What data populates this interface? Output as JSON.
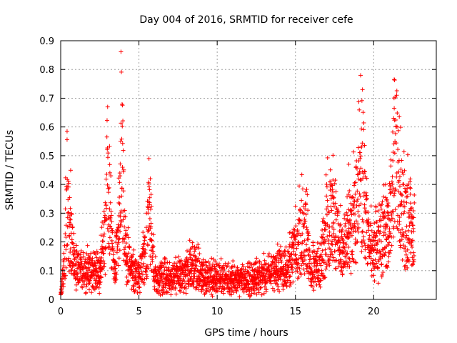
{
  "chart_data": {
    "type": "scatter",
    "title": "Day 004 of 2016, SRMTID for receiver cefe",
    "xlabel": "GPS time / hours",
    "ylabel": "SRMTID / TECUs",
    "xlim": [
      0,
      24
    ],
    "ylim": [
      0,
      0.9
    ],
    "xticks": [
      0,
      5,
      10,
      15,
      20
    ],
    "yticks": [
      0,
      0.1,
      0.2,
      0.3,
      0.4,
      0.5,
      0.6,
      0.7,
      0.8,
      0.9
    ],
    "ytick_labels": [
      "0",
      "0.1",
      "0.2",
      "0.3",
      "0.4",
      "0.5",
      "0.6",
      "0.7",
      "0.8",
      "0.9"
    ],
    "grid": true,
    "marker": "+",
    "color": "#ff0000",
    "series": [
      {
        "name": "SRMTID",
        "envelope": {
          "x": [
            0.0,
            0.2,
            0.4,
            0.6,
            0.8,
            1.0,
            1.5,
            2.0,
            2.5,
            2.9,
            3.0,
            3.2,
            3.5,
            3.8,
            3.9,
            4.0,
            4.2,
            4.5,
            5.0,
            5.5,
            5.6,
            6.0,
            7.0,
            8.0,
            8.5,
            9.0,
            10.0,
            11.0,
            12.0,
            13.0,
            13.5,
            14.0,
            14.5,
            15.0,
            15.3,
            15.6,
            16.0,
            16.5,
            17.0,
            17.3,
            17.6,
            18.0,
            18.3,
            18.6,
            19.0,
            19.2,
            19.4,
            19.7,
            20.0,
            20.5,
            21.0,
            21.2,
            21.4,
            21.6,
            21.8,
            22.0,
            22.3,
            22.6
          ],
          "y": [
            0.0,
            0.15,
            0.38,
            0.3,
            0.2,
            0.13,
            0.12,
            0.12,
            0.11,
            0.3,
            0.52,
            0.3,
            0.15,
            0.4,
            0.79,
            0.45,
            0.18,
            0.12,
            0.1,
            0.2,
            0.38,
            0.1,
            0.09,
            0.1,
            0.16,
            0.09,
            0.09,
            0.09,
            0.08,
            0.11,
            0.11,
            0.14,
            0.13,
            0.22,
            0.26,
            0.3,
            0.12,
            0.15,
            0.3,
            0.36,
            0.28,
            0.2,
            0.3,
            0.3,
            0.43,
            0.5,
            0.4,
            0.24,
            0.2,
            0.24,
            0.3,
            0.55,
            0.75,
            0.45,
            0.4,
            0.33,
            0.36,
            0.24
          ]
        }
      }
    ]
  }
}
